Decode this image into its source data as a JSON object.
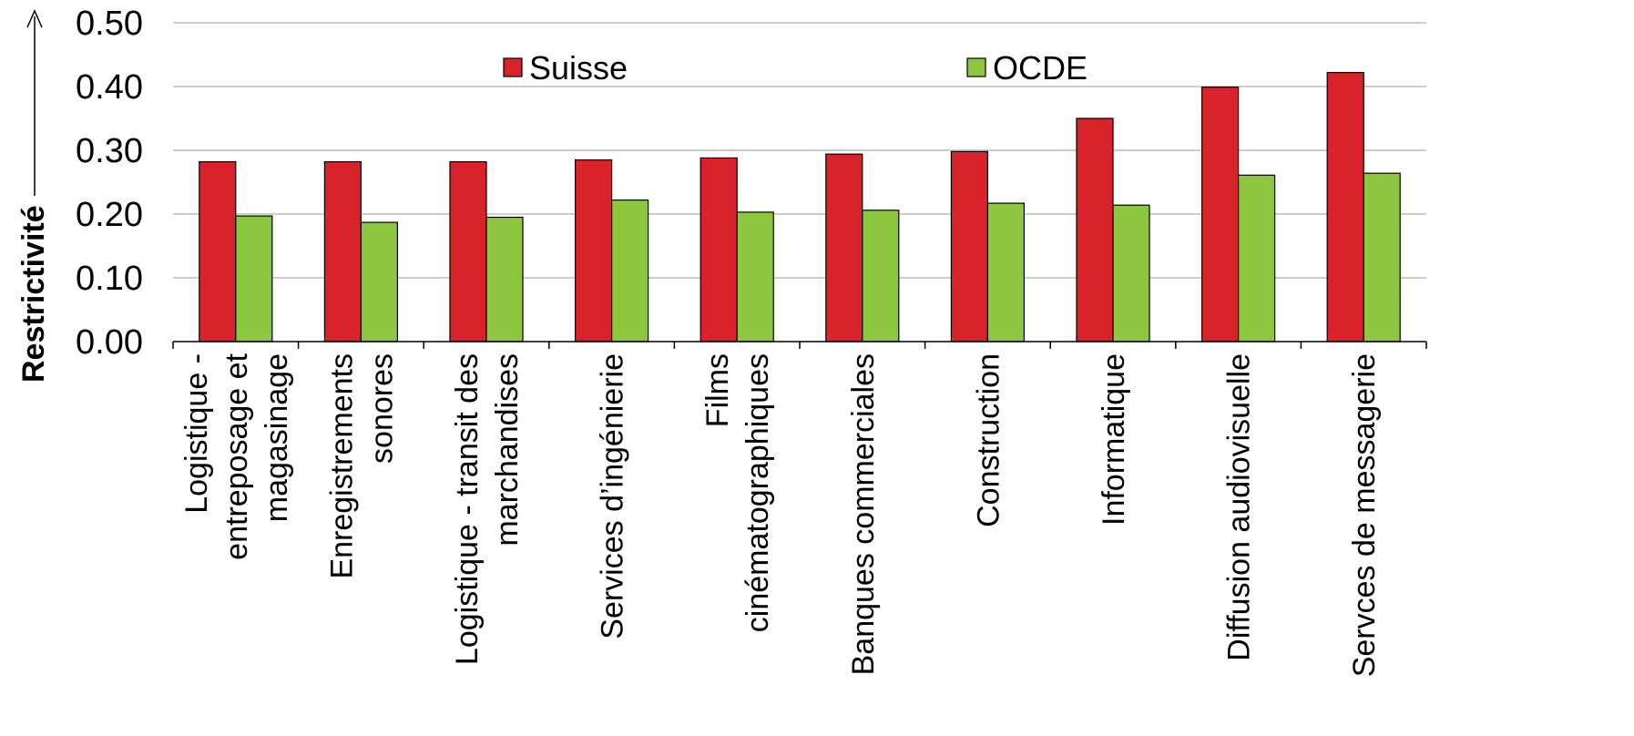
{
  "chart_data": {
    "type": "bar",
    "ylabel": "Restrictivité",
    "xlabel": "",
    "ylim": [
      0,
      0.5
    ],
    "yticks": [
      "0.00",
      "0.10",
      "0.20",
      "0.30",
      "0.40",
      "0.50"
    ],
    "grid": true,
    "legend_position": "top",
    "categories": [
      "Logistique - entreposage et magasinage",
      "Enregistrements sonores",
      "Logistique - transit des marchandises",
      "Services d’ingénierie",
      "Films cinématographiques",
      "Banques commerciales",
      "Construction",
      "Informatique",
      "Diffusion audiovisuelle",
      "Servces de messagerie"
    ],
    "category_lines": [
      [
        "Logistique -",
        "entreposage et",
        "magasinage"
      ],
      [
        "Enregistrements",
        "sonores"
      ],
      [
        "Logistique - transit des",
        "marchandises"
      ],
      [
        "Services d’ingénierie"
      ],
      [
        "Films",
        "cinématographiques"
      ],
      [
        "Banques commerciales"
      ],
      [
        "Construction"
      ],
      [
        "Informatique"
      ],
      [
        "Diffusion audiovisuelle"
      ],
      [
        "Servces de messagerie"
      ]
    ],
    "series": [
      {
        "name": "Suisse",
        "color": "#d9232a",
        "values": [
          0.282,
          0.282,
          0.282,
          0.285,
          0.288,
          0.294,
          0.298,
          0.35,
          0.399,
          0.422
        ]
      },
      {
        "name": "OCDE",
        "color": "#8dc63f",
        "values": [
          0.197,
          0.187,
          0.195,
          0.222,
          0.203,
          0.206,
          0.217,
          0.214,
          0.261,
          0.264
        ]
      }
    ]
  }
}
